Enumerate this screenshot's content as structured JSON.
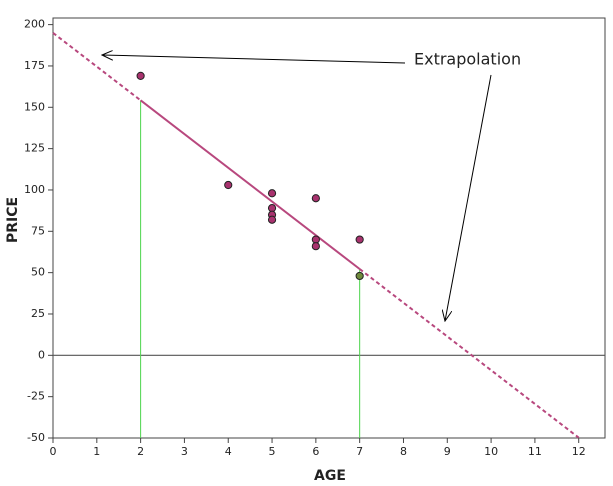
{
  "chart_data": {
    "type": "scatter",
    "x_label": "AGE",
    "y_label": "PRICE",
    "annotation": "Extrapolation",
    "x": [
      2,
      4,
      5,
      5,
      5,
      5,
      6,
      6,
      6,
      7,
      7
    ],
    "y": [
      169,
      103,
      98,
      89,
      85,
      82,
      95,
      70,
      66,
      70,
      48
    ],
    "colors": [
      "#a8326e",
      "#a8326e",
      "#a8326e",
      "#a8326e",
      "#a8326e",
      "#a8326e",
      "#a8326e",
      "#a8326e",
      "#a8326e",
      "#a8326e",
      "#6f8a3c"
    ],
    "fit": {
      "x": [
        0,
        2,
        7,
        12
      ],
      "y": [
        195,
        154.2,
        52.2,
        -49.8
      ],
      "color": "#b8487e"
    },
    "drop_color": "#4cd44c",
    "xlim": [
      0,
      12.6
    ],
    "ylim": [
      -50,
      204
    ],
    "xticks": [
      0,
      1,
      2,
      3,
      4,
      5,
      6,
      7,
      8,
      9,
      10,
      11,
      12
    ],
    "yticks": [
      -50,
      -25,
      0,
      25,
      50,
      75,
      100,
      125,
      150,
      175,
      200
    ]
  }
}
